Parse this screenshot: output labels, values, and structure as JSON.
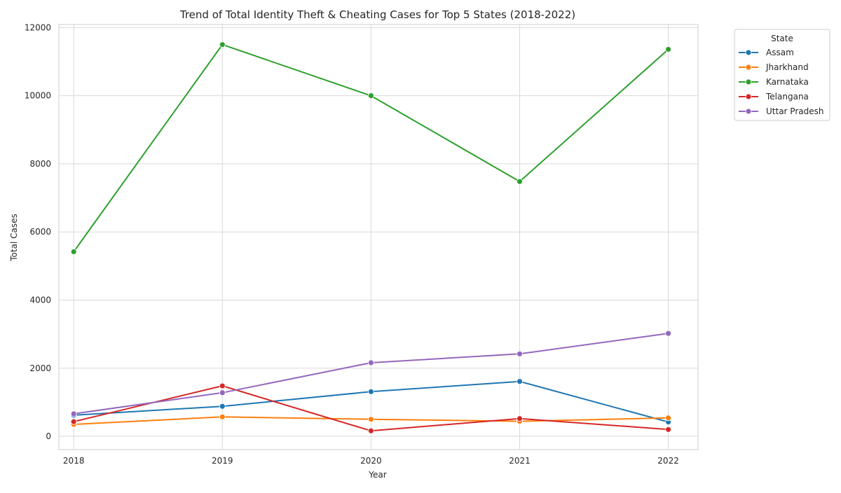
{
  "chart_data": {
    "type": "line",
    "title": "Trend of Total Identity Theft & Cheating Cases for Top 5 States (2018-2022)",
    "xlabel": "Year",
    "ylabel": "Total Cases",
    "x": [
      2018,
      2019,
      2020,
      2021,
      2022
    ],
    "x_tick_labels": [
      "2018",
      "2019",
      "2020",
      "2021",
      "2022"
    ],
    "xlim": [
      2017.9,
      2022.2
    ],
    "ylim": [
      -390,
      12090
    ],
    "y_ticks": [
      0,
      2000,
      4000,
      6000,
      8000,
      10000,
      12000
    ],
    "y_tick_labels": [
      "0",
      "2000",
      "4000",
      "6000",
      "8000",
      "10000",
      "12000"
    ],
    "grid": true,
    "legend": {
      "title": "State",
      "placement": "outside-top-right"
    },
    "series": [
      {
        "name": "Assam",
        "color": "#1f77b4",
        "values": [
          620,
          880,
          1310,
          1610,
          420
        ]
      },
      {
        "name": "Jharkhand",
        "color": "#ff7f0e",
        "values": [
          350,
          570,
          500,
          440,
          540
        ]
      },
      {
        "name": "Karnataka",
        "color": "#2ca02c",
        "values": [
          5420,
          11500,
          10000,
          7480,
          11360
        ]
      },
      {
        "name": "Telangana",
        "color": "#d62728",
        "values": [
          430,
          1480,
          160,
          520,
          200
        ]
      },
      {
        "name": "Uttar Pradesh",
        "color": "#9467bd",
        "values": [
          660,
          1280,
          2160,
          2420,
          3020
        ]
      }
    ]
  }
}
